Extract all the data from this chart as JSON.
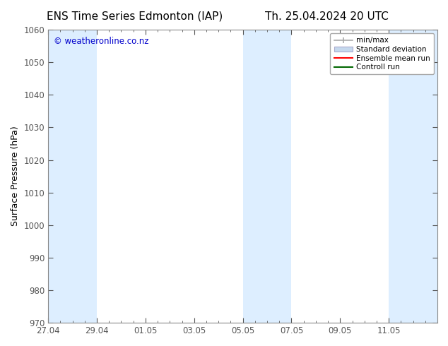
{
  "title_left": "ENS Time Series Edmonton (IAP)",
  "title_right": "Th. 25.04.2024 20 UTC",
  "ylabel": "Surface Pressure (hPa)",
  "ylim": [
    970,
    1060
  ],
  "yticks": [
    970,
    980,
    990,
    1000,
    1010,
    1020,
    1030,
    1040,
    1050,
    1060
  ],
  "xtick_labels": [
    "27.04",
    "29.04",
    "01.05",
    "03.05",
    "05.05",
    "07.05",
    "09.05",
    "11.05"
  ],
  "xtick_positions": [
    0,
    2,
    4,
    6,
    8,
    10,
    12,
    14
  ],
  "xlim": [
    0,
    16
  ],
  "watermark": "© weatheronline.co.nz",
  "watermark_color": "#0000cc",
  "background_color": "#ffffff",
  "plot_bg_color": "#ffffff",
  "shaded_ranges": [
    [
      0,
      1
    ],
    [
      1,
      2
    ],
    [
      8,
      9
    ],
    [
      9,
      10
    ],
    [
      14,
      16
    ]
  ],
  "shaded_color": "#ddeeff",
  "legend_labels": [
    "min/max",
    "Standard deviation",
    "Ensemble mean run",
    "Controll run"
  ],
  "legend_colors": [
    "#aaaaaa",
    "#c5d8ed",
    "#ff0000",
    "#006600"
  ],
  "title_fontsize": 11,
  "axis_fontsize": 9,
  "tick_fontsize": 8.5,
  "legend_fontsize": 7.5,
  "border_color": "#888888"
}
